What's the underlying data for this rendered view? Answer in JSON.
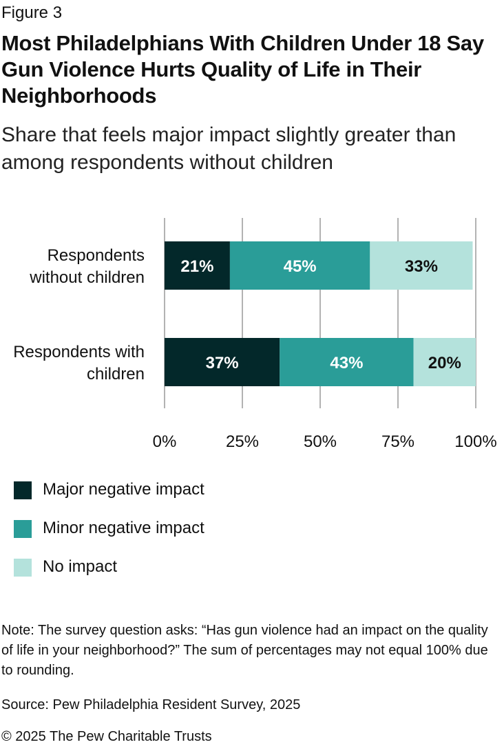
{
  "figure_label": "Figure 3",
  "title": "Most Philadelphians With Children Under 18 Say Gun Violence Hurts Quality of Life in Their Neighborhoods",
  "subtitle": "Share that feels major impact slightly greater than among respondents without children",
  "note": "Note: The survey question asks: “Has gun violence had an impact on the quality of life in your neighborhood?” The sum of percentages may not equal 100% due to rounding.",
  "source": "Source: Pew Philadelphia Resident Survey, 2025",
  "copyright": "© 2025 The Pew Charitable Trusts",
  "colors": {
    "major": "#03282a",
    "minor": "#2a9d98",
    "none": "#b4e2dc",
    "gridline": "#999999"
  },
  "chart_data": {
    "type": "bar",
    "orientation": "horizontal",
    "stacked": true,
    "categories": [
      [
        "Respondents",
        "without children"
      ],
      [
        "Respondents with",
        "children"
      ]
    ],
    "series": [
      {
        "name": "Major negative impact",
        "color": "#03282a",
        "label_color": "#ffffff",
        "values": [
          21,
          37
        ],
        "labels": [
          "21%",
          "37%"
        ]
      },
      {
        "name": "Minor negative impact",
        "color": "#2a9d98",
        "label_color": "#ffffff",
        "values": [
          45,
          43
        ],
        "labels": [
          "45%",
          "43%"
        ]
      },
      {
        "name": "No impact",
        "color": "#b4e2dc",
        "label_color": "#111111",
        "values": [
          33,
          20
        ],
        "labels": [
          "33%",
          "20%"
        ]
      }
    ],
    "xlim": [
      0,
      100
    ],
    "xticks": [
      0,
      25,
      50,
      75,
      100
    ],
    "xtick_labels": [
      "0%",
      "25%",
      "50%",
      "75%",
      "100%"
    ],
    "grid": true,
    "legend_position": "bottom-left"
  }
}
